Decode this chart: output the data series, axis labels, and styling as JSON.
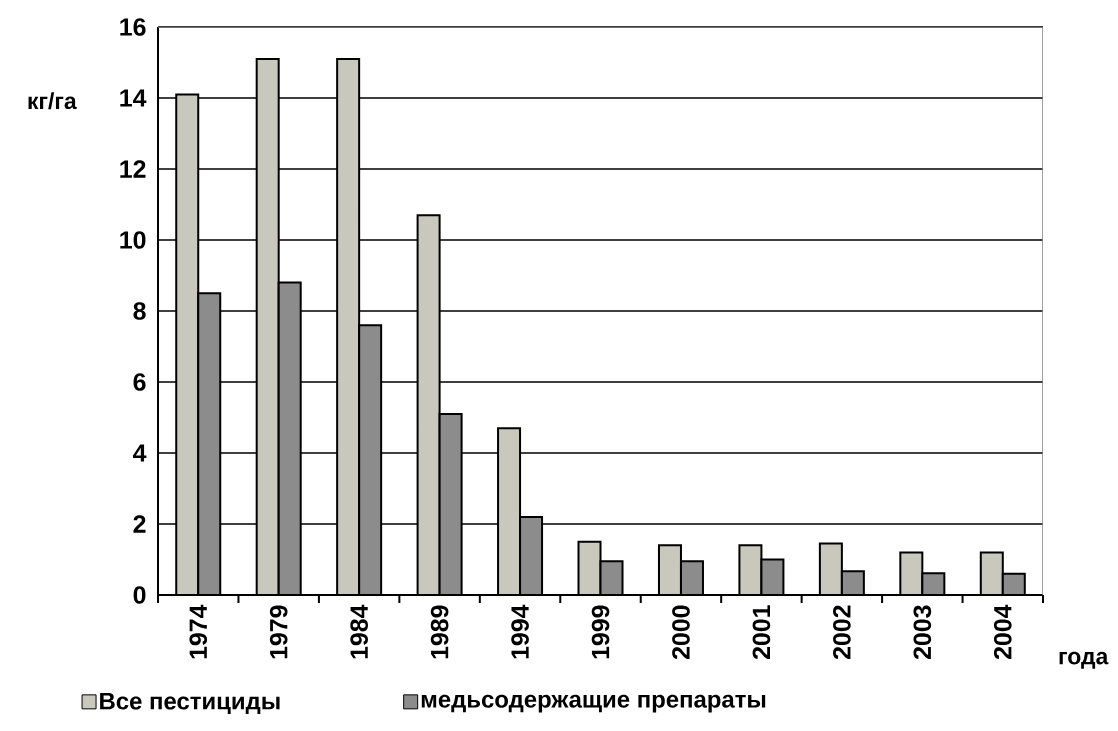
{
  "chart_data": {
    "type": "bar",
    "ylabel": "кг/га",
    "xlabel": "года",
    "categories": [
      "1974",
      "1979",
      "1984",
      "1989",
      "1994",
      "1999",
      "2000",
      "2001",
      "2002",
      "2003",
      "2004"
    ],
    "series": [
      {
        "name": "Все пестициды",
        "color": "#c8c8bc",
        "values": [
          14.1,
          15.1,
          15.1,
          10.7,
          4.7,
          1.5,
          1.4,
          1.4,
          1.45,
          1.2,
          1.2
        ]
      },
      {
        "name": "медьсодержащие препараты",
        "color": "#8c8c8c",
        "values": [
          8.5,
          8.8,
          7.6,
          5.1,
          2.2,
          0.95,
          0.95,
          1.0,
          0.67,
          0.61,
          0.6
        ]
      }
    ],
    "ylim": [
      0,
      16
    ],
    "yticks": [
      0,
      2,
      4,
      6,
      8,
      10,
      12,
      14,
      16
    ],
    "grid": "y",
    "legend": "bottom"
  }
}
